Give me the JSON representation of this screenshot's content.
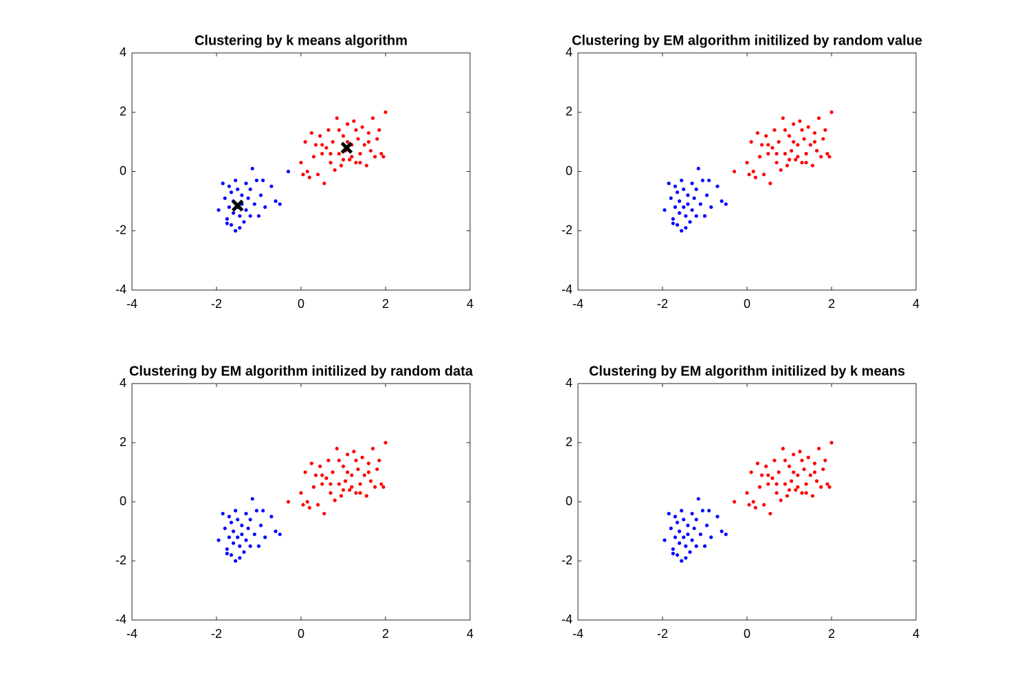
{
  "chart_data": [
    {
      "type": "scatter",
      "title": "Clustering by k means algorithm",
      "xlim": [
        -4,
        4
      ],
      "ylim": [
        -4,
        4
      ],
      "xticks": [
        -4,
        -2,
        0,
        2,
        4
      ],
      "yticks": [
        -4,
        -2,
        0,
        2,
        4
      ],
      "series": [
        {
          "color": "#0000ff",
          "x": [
            -1.95,
            -1.85,
            -1.8,
            -1.75,
            -1.7,
            -1.7,
            -1.65,
            -1.6,
            -1.6,
            -1.55,
            -1.5,
            -1.5,
            -1.45,
            -1.4,
            -1.4,
            -1.35,
            -1.3,
            -1.3,
            -1.25,
            -1.2,
            -1.2,
            -1.15,
            -1.1,
            -1.05,
            -1.0,
            -0.95,
            -0.9,
            -0.85,
            -0.7,
            -0.6,
            -0.5,
            -1.75,
            -1.65,
            -1.55,
            -1.45,
            -0.3
          ],
          "values": [
            -1.3,
            -0.4,
            -0.9,
            -1.6,
            -1.2,
            -0.5,
            -1.8,
            -1.0,
            -1.4,
            -2.0,
            -0.6,
            -1.2,
            -1.5,
            -0.8,
            -1.1,
            -1.7,
            -0.4,
            -1.3,
            -0.9,
            -1.5,
            -0.6,
            0.1,
            -1.1,
            -0.3,
            -1.5,
            -0.8,
            -0.3,
            -1.2,
            -0.5,
            -1.0,
            -1.1,
            -1.75,
            -0.7,
            -0.3,
            -1.9,
            0.0
          ]
        },
        {
          "color": "#ff0000",
          "x": [
            0.0,
            0.05,
            0.1,
            0.15,
            0.2,
            0.25,
            0.3,
            0.35,
            0.4,
            0.45,
            0.5,
            0.55,
            0.6,
            0.65,
            0.7,
            0.75,
            0.8,
            0.85,
            0.9,
            0.95,
            1.0,
            1.05,
            1.1,
            1.15,
            1.2,
            1.25,
            1.3,
            1.35,
            1.4,
            1.45,
            1.5,
            1.55,
            1.6,
            1.65,
            1.7,
            1.75,
            1.8,
            1.85,
            1.9,
            1.95,
            2.0,
            1.2,
            0.9,
            1.3,
            1.0,
            1.6,
            0.7,
            1.4,
            1.1,
            0.5
          ],
          "values": [
            0.3,
            -0.1,
            1.0,
            0.0,
            -0.2,
            1.3,
            0.5,
            0.9,
            -0.1,
            1.2,
            0.6,
            -0.4,
            0.8,
            1.4,
            0.3,
            1.0,
            0.05,
            1.8,
            0.6,
            0.2,
            1.2,
            0.7,
            1.6,
            0.4,
            0.9,
            1.7,
            0.3,
            1.1,
            0.6,
            1.5,
            0.9,
            0.2,
            1.3,
            0.7,
            1.8,
            0.5,
            1.1,
            1.4,
            0.6,
            0.5,
            2.0,
            0.5,
            1.4,
            1.4,
            0.4,
            1.0,
            0.6,
            0.3,
            1.0,
            0.9
          ]
        },
        {
          "color": "#000000",
          "marker": "x",
          "x": [
            -1.5,
            1.08
          ],
          "values": [
            -1.15,
            0.8
          ]
        }
      ]
    },
    {
      "type": "scatter",
      "title": "Clustering by EM algorithm initilized by random value",
      "xlim": [
        -4,
        4
      ],
      "ylim": [
        -4,
        4
      ],
      "xticks": [
        -4,
        -2,
        0,
        2,
        4
      ],
      "yticks": [
        -4,
        -2,
        0,
        2,
        4
      ],
      "series": [
        {
          "color": "#0000ff",
          "x": [
            -1.95,
            -1.85,
            -1.8,
            -1.75,
            -1.7,
            -1.7,
            -1.65,
            -1.6,
            -1.6,
            -1.55,
            -1.5,
            -1.5,
            -1.45,
            -1.4,
            -1.4,
            -1.35,
            -1.3,
            -1.3,
            -1.25,
            -1.2,
            -1.2,
            -1.15,
            -1.1,
            -1.05,
            -1.0,
            -0.95,
            -0.9,
            -0.85,
            -0.7,
            -0.6,
            -0.5,
            -1.75,
            -1.65,
            -1.55,
            -1.45
          ],
          "values": [
            -1.3,
            -0.4,
            -0.9,
            -1.6,
            -1.2,
            -0.5,
            -1.8,
            -1.0,
            -1.4,
            -2.0,
            -0.6,
            -1.2,
            -1.5,
            -0.8,
            -1.1,
            -1.7,
            -0.4,
            -1.3,
            -0.9,
            -1.5,
            -0.6,
            0.1,
            -1.1,
            -0.3,
            -1.5,
            -0.8,
            -0.3,
            -1.2,
            -0.5,
            -1.0,
            -1.1,
            -1.75,
            -0.7,
            -0.3,
            -1.9
          ]
        },
        {
          "color": "#ff0000",
          "x": [
            -0.3,
            0.0,
            0.05,
            0.1,
            0.15,
            0.2,
            0.25,
            0.3,
            0.35,
            0.4,
            0.45,
            0.5,
            0.55,
            0.6,
            0.65,
            0.7,
            0.75,
            0.8,
            0.85,
            0.9,
            0.95,
            1.0,
            1.05,
            1.1,
            1.15,
            1.2,
            1.25,
            1.3,
            1.35,
            1.4,
            1.45,
            1.5,
            1.55,
            1.6,
            1.65,
            1.7,
            1.75,
            1.8,
            1.85,
            1.9,
            1.95,
            2.0,
            1.2,
            0.9,
            1.3,
            1.0,
            1.6,
            0.7,
            1.4,
            1.1,
            0.5
          ],
          "values": [
            0.0,
            0.3,
            -0.1,
            1.0,
            0.0,
            -0.2,
            1.3,
            0.5,
            0.9,
            -0.1,
            1.2,
            0.6,
            -0.4,
            0.8,
            1.4,
            0.3,
            1.0,
            0.05,
            1.8,
            0.6,
            0.2,
            1.2,
            0.7,
            1.6,
            0.4,
            0.9,
            1.7,
            0.3,
            1.1,
            0.6,
            1.5,
            0.9,
            0.2,
            1.3,
            0.7,
            1.8,
            0.5,
            1.1,
            1.4,
            0.6,
            0.5,
            2.0,
            0.5,
            1.4,
            1.4,
            0.4,
            1.0,
            0.6,
            0.3,
            1.0,
            0.9
          ]
        }
      ]
    },
    {
      "type": "scatter",
      "title": "Clustering by EM algorithm initilized by random data",
      "xlim": [
        -4,
        4
      ],
      "ylim": [
        -4,
        4
      ],
      "xticks": [
        -4,
        -2,
        0,
        2,
        4
      ],
      "yticks": [
        -4,
        -2,
        0,
        2,
        4
      ],
      "series": [
        {
          "color": "#0000ff",
          "x": [
            -1.95,
            -1.85,
            -1.8,
            -1.75,
            -1.7,
            -1.7,
            -1.65,
            -1.6,
            -1.6,
            -1.55,
            -1.5,
            -1.5,
            -1.45,
            -1.4,
            -1.4,
            -1.35,
            -1.3,
            -1.3,
            -1.25,
            -1.2,
            -1.2,
            -1.15,
            -1.1,
            -1.05,
            -1.0,
            -0.95,
            -0.9,
            -0.85,
            -0.7,
            -0.6,
            -0.5,
            -1.75,
            -1.65,
            -1.55,
            -1.45
          ],
          "values": [
            -1.3,
            -0.4,
            -0.9,
            -1.6,
            -1.2,
            -0.5,
            -1.8,
            -1.0,
            -1.4,
            -2.0,
            -0.6,
            -1.2,
            -1.5,
            -0.8,
            -1.1,
            -1.7,
            -0.4,
            -1.3,
            -0.9,
            -1.5,
            -0.6,
            0.1,
            -1.1,
            -0.3,
            -1.5,
            -0.8,
            -0.3,
            -1.2,
            -0.5,
            -1.0,
            -1.1,
            -1.75,
            -0.7,
            -0.3,
            -1.9
          ]
        },
        {
          "color": "#ff0000",
          "x": [
            -0.3,
            0.0,
            0.05,
            0.1,
            0.15,
            0.2,
            0.25,
            0.3,
            0.35,
            0.4,
            0.45,
            0.5,
            0.55,
            0.6,
            0.65,
            0.7,
            0.75,
            0.8,
            0.85,
            0.9,
            0.95,
            1.0,
            1.05,
            1.1,
            1.15,
            1.2,
            1.25,
            1.3,
            1.35,
            1.4,
            1.45,
            1.5,
            1.55,
            1.6,
            1.65,
            1.7,
            1.75,
            1.8,
            1.85,
            1.9,
            1.95,
            2.0,
            1.2,
            0.9,
            1.3,
            1.0,
            1.6,
            0.7,
            1.4,
            1.1,
            0.5
          ],
          "values": [
            0.0,
            0.3,
            -0.1,
            1.0,
            0.0,
            -0.2,
            1.3,
            0.5,
            0.9,
            -0.1,
            1.2,
            0.6,
            -0.4,
            0.8,
            1.4,
            0.3,
            1.0,
            0.05,
            1.8,
            0.6,
            0.2,
            1.2,
            0.7,
            1.6,
            0.4,
            0.9,
            1.7,
            0.3,
            1.1,
            0.6,
            1.5,
            0.9,
            0.2,
            1.3,
            0.7,
            1.8,
            0.5,
            1.1,
            1.4,
            0.6,
            0.5,
            2.0,
            0.5,
            1.4,
            1.4,
            0.4,
            1.0,
            0.6,
            0.3,
            1.0,
            0.9
          ]
        }
      ]
    },
    {
      "type": "scatter",
      "title": "Clustering by EM algorithm initilized by k means",
      "xlim": [
        -4,
        4
      ],
      "ylim": [
        -4,
        4
      ],
      "xticks": [
        -4,
        -2,
        0,
        2,
        4
      ],
      "yticks": [
        -4,
        -2,
        0,
        2,
        4
      ],
      "series": [
        {
          "color": "#0000ff",
          "x": [
            -1.95,
            -1.85,
            -1.8,
            -1.75,
            -1.7,
            -1.7,
            -1.65,
            -1.6,
            -1.6,
            -1.55,
            -1.5,
            -1.5,
            -1.45,
            -1.4,
            -1.4,
            -1.35,
            -1.3,
            -1.3,
            -1.25,
            -1.2,
            -1.2,
            -1.15,
            -1.1,
            -1.05,
            -1.0,
            -0.95,
            -0.9,
            -0.85,
            -0.7,
            -0.6,
            -0.5,
            -1.75,
            -1.65,
            -1.55,
            -1.45
          ],
          "values": [
            -1.3,
            -0.4,
            -0.9,
            -1.6,
            -1.2,
            -0.5,
            -1.8,
            -1.0,
            -1.4,
            -2.0,
            -0.6,
            -1.2,
            -1.5,
            -0.8,
            -1.1,
            -1.7,
            -0.4,
            -1.3,
            -0.9,
            -1.5,
            -0.6,
            0.1,
            -1.1,
            -0.3,
            -1.5,
            -0.8,
            -0.3,
            -1.2,
            -0.5,
            -1.0,
            -1.1,
            -1.75,
            -0.7,
            -0.3,
            -1.9
          ]
        },
        {
          "color": "#ff0000",
          "x": [
            -0.3,
            0.0,
            0.05,
            0.1,
            0.15,
            0.2,
            0.25,
            0.3,
            0.35,
            0.4,
            0.45,
            0.5,
            0.55,
            0.6,
            0.65,
            0.7,
            0.75,
            0.8,
            0.85,
            0.9,
            0.95,
            1.0,
            1.05,
            1.1,
            1.15,
            1.2,
            1.25,
            1.3,
            1.35,
            1.4,
            1.45,
            1.5,
            1.55,
            1.6,
            1.65,
            1.7,
            1.75,
            1.8,
            1.85,
            1.9,
            1.95,
            2.0,
            1.2,
            0.9,
            1.3,
            1.0,
            1.6,
            0.7,
            1.4,
            1.1,
            0.5
          ],
          "values": [
            0.0,
            0.3,
            -0.1,
            1.0,
            0.0,
            -0.2,
            1.3,
            0.5,
            0.9,
            -0.1,
            1.2,
            0.6,
            -0.4,
            0.8,
            1.4,
            0.3,
            1.0,
            0.05,
            1.8,
            0.6,
            0.2,
            1.2,
            0.7,
            1.6,
            0.4,
            0.9,
            1.7,
            0.3,
            1.1,
            0.6,
            1.5,
            0.9,
            0.2,
            1.3,
            0.7,
            1.8,
            0.5,
            1.1,
            1.4,
            0.6,
            0.5,
            2.0,
            0.5,
            1.4,
            1.4,
            0.4,
            1.0,
            0.6,
            0.3,
            1.0,
            0.9
          ]
        }
      ]
    }
  ]
}
